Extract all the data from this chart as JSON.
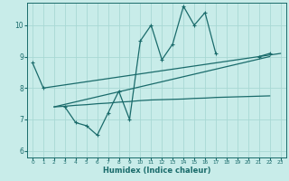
{
  "xlabel": "Humidex (Indice chaleur)",
  "bg_color": "#c8ece9",
  "grid_color": "#a8d8d4",
  "line_color": "#1a6b6b",
  "xlim": [
    -0.5,
    23.5
  ],
  "ylim": [
    5.8,
    10.7
  ],
  "yticks": [
    6,
    7,
    8,
    9,
    10
  ],
  "xticks": [
    0,
    1,
    2,
    3,
    4,
    5,
    6,
    7,
    8,
    9,
    10,
    11,
    12,
    13,
    14,
    15,
    16,
    17,
    18,
    19,
    20,
    21,
    22,
    23
  ],
  "lines": [
    {
      "segments": [
        {
          "x": [
            0,
            1
          ],
          "y": [
            8.8,
            8.0
          ]
        },
        {
          "x": [
            3,
            4,
            5,
            6,
            7,
            8,
            9,
            10,
            11,
            12,
            13,
            14,
            15,
            16,
            17
          ],
          "y": [
            7.4,
            6.9,
            6.8,
            6.5,
            7.2,
            7.9,
            7.0,
            9.5,
            10.0,
            8.9,
            9.4,
            10.6,
            10.0,
            10.4,
            9.1
          ]
        },
        {
          "x": [
            21,
            22
          ],
          "y": [
            9.0,
            9.1
          ]
        }
      ]
    },
    {
      "x": [
        2,
        3,
        4,
        5,
        6,
        7,
        8,
        9,
        10,
        11,
        12,
        13,
        14,
        15,
        16,
        17,
        18,
        19,
        20,
        21,
        22
      ],
      "y": [
        7.4,
        7.42,
        7.45,
        7.47,
        7.5,
        7.52,
        7.55,
        7.57,
        7.6,
        7.62,
        7.63,
        7.64,
        7.65,
        7.67,
        7.68,
        7.7,
        7.71,
        7.72,
        7.73,
        7.74,
        7.75
      ]
    },
    {
      "x": [
        1,
        23
      ],
      "y": [
        8.0,
        9.1
      ]
    },
    {
      "x": [
        2,
        22
      ],
      "y": [
        7.4,
        9.0
      ]
    }
  ]
}
